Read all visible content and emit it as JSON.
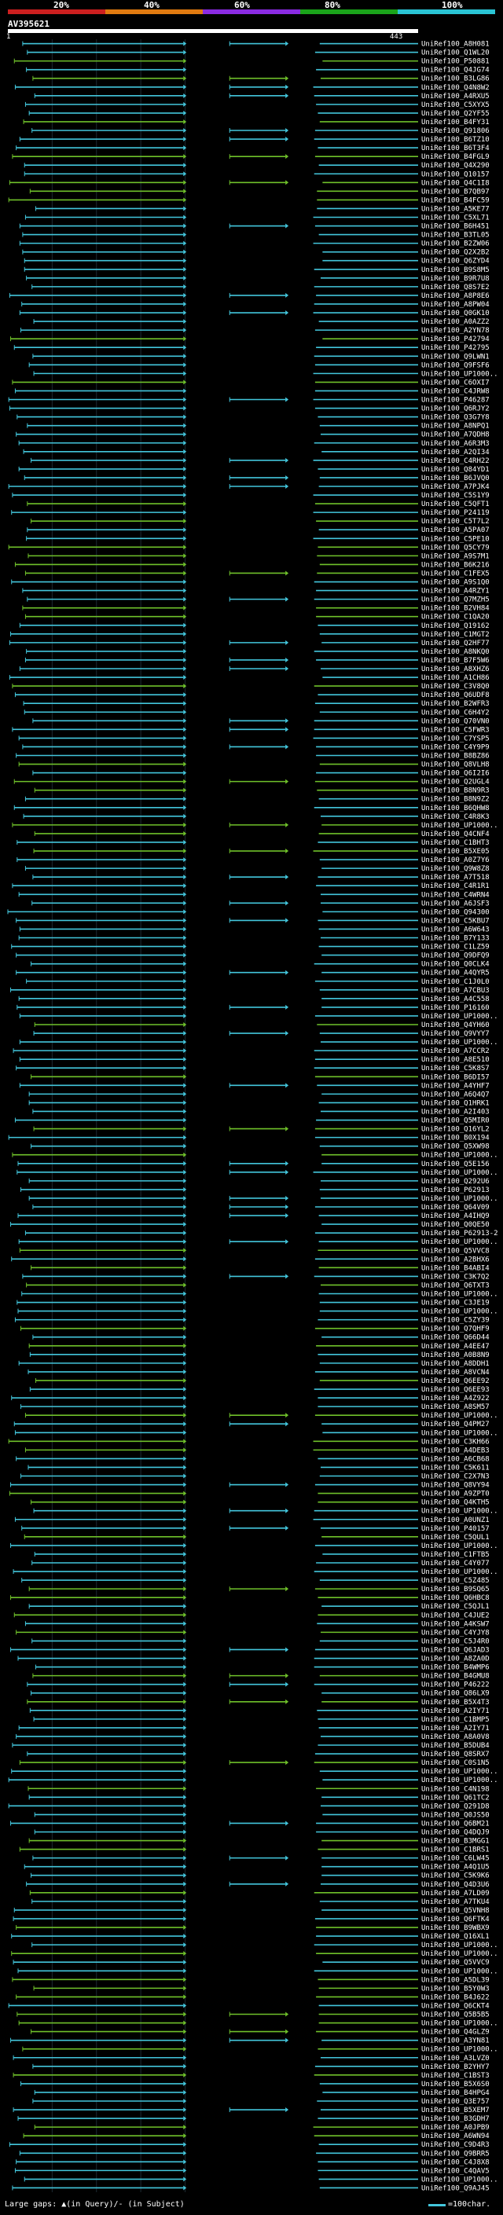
{
  "header": {
    "percent_labels": [
      "20%",
      "40%",
      "60%",
      "80%",
      "100%"
    ],
    "colorbar": [
      "#cc1f1f",
      "#e07a10",
      "#8a2be2",
      "#1aa31a",
      "#2ac4d4"
    ],
    "query_name": "AV395621",
    "ruler_start": "1",
    "ruler_end": "443"
  },
  "footer": {
    "gap_text": "Large gaps: ▲(in Query)/- (in Subject)",
    "scale_text": "=100char."
  },
  "chart_data": {
    "type": "alignment",
    "x_range": [
      1,
      443
    ],
    "legend": {
      "cyan": "#43c6dc",
      "green": "#6fc12a"
    },
    "hits": []
  }
}
